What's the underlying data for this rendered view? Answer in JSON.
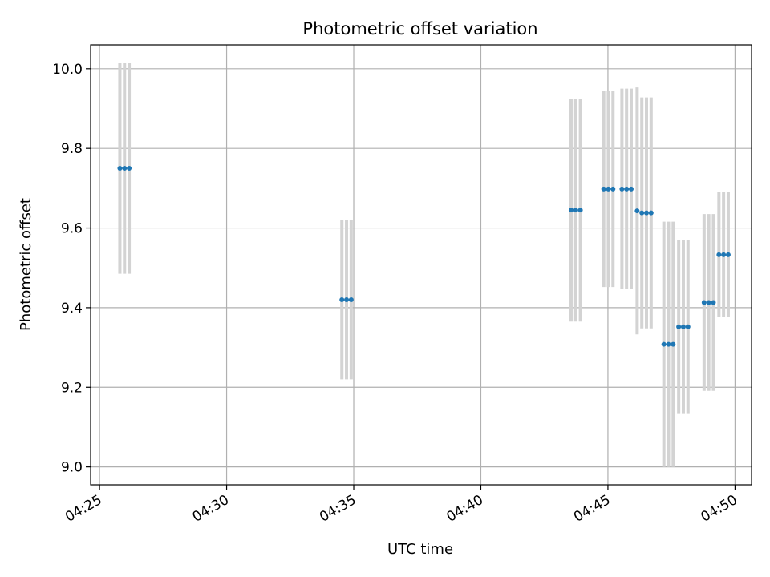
{
  "chart_data": {
    "type": "scatter",
    "title": "Photometric offset variation",
    "xlabel": "UTC time",
    "ylabel": "Photometric offset",
    "x_unit": "UTC time (HH:MM:SS)",
    "xlim": [
      "04:24:39",
      "04:50:39"
    ],
    "ylim": [
      8.955,
      10.06
    ],
    "grid": true,
    "x_ticks": [
      "04:25",
      "04:30",
      "04:35",
      "04:40",
      "04:45",
      "04:50"
    ],
    "y_ticks": [
      "9.0",
      "9.2",
      "9.4",
      "9.6",
      "9.8",
      "10.0"
    ],
    "marker_color": "#1f77b4",
    "errorbar_color": "#d3d3d3",
    "points": [
      {
        "t": "04:25:48",
        "y": 9.75,
        "err": 0.265
      },
      {
        "t": "04:25:59",
        "y": 9.75,
        "err": 0.265
      },
      {
        "t": "04:26:10",
        "y": 9.75,
        "err": 0.265
      },
      {
        "t": "04:34:32",
        "y": 9.42,
        "err": 0.2
      },
      {
        "t": "04:34:43",
        "y": 9.42,
        "err": 0.2
      },
      {
        "t": "04:34:54",
        "y": 9.42,
        "err": 0.2
      },
      {
        "t": "04:43:33",
        "y": 9.645,
        "err": 0.28
      },
      {
        "t": "04:43:44",
        "y": 9.645,
        "err": 0.28
      },
      {
        "t": "04:43:55",
        "y": 9.645,
        "err": 0.28
      },
      {
        "t": "04:44:50",
        "y": 9.698,
        "err": 0.246
      },
      {
        "t": "04:45:01",
        "y": 9.698,
        "err": 0.246
      },
      {
        "t": "04:45:12",
        "y": 9.698,
        "err": 0.246
      },
      {
        "t": "04:45:33",
        "y": 9.698,
        "err": 0.252
      },
      {
        "t": "04:45:44",
        "y": 9.698,
        "err": 0.252
      },
      {
        "t": "04:45:55",
        "y": 9.698,
        "err": 0.252
      },
      {
        "t": "04:46:09",
        "y": 9.643,
        "err": 0.31
      },
      {
        "t": "04:46:20",
        "y": 9.638,
        "err": 0.29
      },
      {
        "t": "04:46:31",
        "y": 9.638,
        "err": 0.29
      },
      {
        "t": "04:46:42",
        "y": 9.638,
        "err": 0.29
      },
      {
        "t": "04:47:12",
        "y": 9.308,
        "err": 0.308
      },
      {
        "t": "04:47:23",
        "y": 9.308,
        "err": 0.308
      },
      {
        "t": "04:47:34",
        "y": 9.308,
        "err": 0.308
      },
      {
        "t": "04:47:47",
        "y": 9.352,
        "err": 0.217
      },
      {
        "t": "04:47:58",
        "y": 9.352,
        "err": 0.217
      },
      {
        "t": "04:48:09",
        "y": 9.352,
        "err": 0.217
      },
      {
        "t": "04:48:47",
        "y": 9.413,
        "err": 0.222
      },
      {
        "t": "04:48:58",
        "y": 9.413,
        "err": 0.222
      },
      {
        "t": "04:49:09",
        "y": 9.413,
        "err": 0.222
      },
      {
        "t": "04:49:22",
        "y": 9.533,
        "err": 0.157
      },
      {
        "t": "04:49:33",
        "y": 9.533,
        "err": 0.157
      },
      {
        "t": "04:49:44",
        "y": 9.533,
        "err": 0.157
      }
    ]
  }
}
